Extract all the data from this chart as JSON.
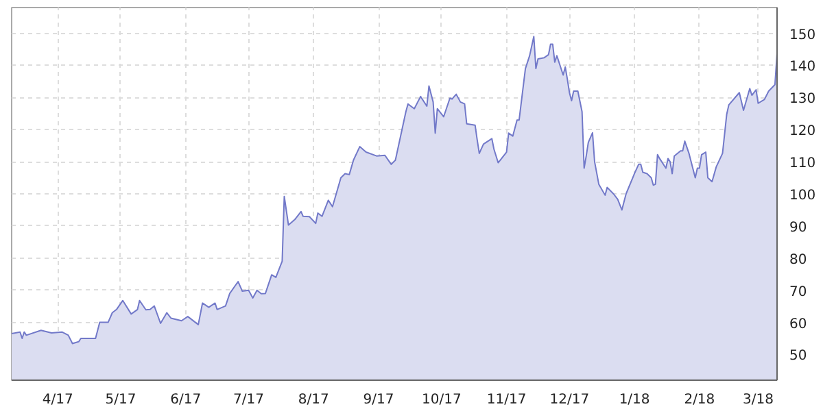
{
  "chart_data": {
    "type": "area",
    "x": [
      "2017-03-10",
      "2017-03-14",
      "2017-03-15",
      "2017-03-16",
      "2017-03-17",
      "2017-03-24",
      "2017-03-29",
      "2017-04-03",
      "2017-04-06",
      "2017-04-08",
      "2017-04-11",
      "2017-04-12",
      "2017-04-19",
      "2017-04-21",
      "2017-04-25",
      "2017-04-27",
      "2017-04-29",
      "2017-05-02",
      "2017-05-06",
      "2017-05-09",
      "2017-05-10",
      "2017-05-13",
      "2017-05-15",
      "2017-05-17",
      "2017-05-20",
      "2017-05-23",
      "2017-05-25",
      "2017-05-30",
      "2017-06-02",
      "2017-06-07",
      "2017-06-09",
      "2017-06-12",
      "2017-06-15",
      "2017-06-16",
      "2017-06-20",
      "2017-06-22",
      "2017-06-26",
      "2017-06-28",
      "2017-07-01",
      "2017-07-03",
      "2017-07-05",
      "2017-07-07",
      "2017-07-09",
      "2017-07-12",
      "2017-07-14",
      "2017-07-17",
      "2017-07-18",
      "2017-07-20",
      "2017-07-23",
      "2017-07-26",
      "2017-07-27",
      "2017-07-30",
      "2017-08-02",
      "2017-08-03",
      "2017-08-05",
      "2017-08-08",
      "2017-08-10",
      "2017-08-14",
      "2017-08-16",
      "2017-08-18",
      "2017-08-20",
      "2017-08-23",
      "2017-08-26",
      "2017-08-31",
      "2017-09-04",
      "2017-09-07",
      "2017-09-09",
      "2017-09-14",
      "2017-09-15",
      "2017-09-18",
      "2017-09-21",
      "2017-09-24",
      "2017-09-25",
      "2017-09-27",
      "2017-09-28",
      "2017-09-29",
      "2017-10-02",
      "2017-10-05",
      "2017-10-06",
      "2017-10-08",
      "2017-10-10",
      "2017-10-12",
      "2017-10-13",
      "2017-10-17",
      "2017-10-18",
      "2017-10-19",
      "2017-10-21",
      "2017-10-25",
      "2017-10-26",
      "2017-10-28",
      "2017-11-01",
      "2017-11-02",
      "2017-11-04",
      "2017-11-06",
      "2017-11-07",
      "2017-11-10",
      "2017-11-12",
      "2017-11-14",
      "2017-11-15",
      "2017-11-16",
      "2017-11-19",
      "2017-11-21",
      "2017-11-22",
      "2017-11-23",
      "2017-11-24",
      "2017-11-25",
      "2017-11-28",
      "2017-11-29",
      "2017-11-30",
      "2017-12-01",
      "2017-12-02",
      "2017-12-03",
      "2017-12-05",
      "2017-12-07",
      "2017-12-08",
      "2017-12-09",
      "2017-12-10",
      "2017-12-12",
      "2017-12-13",
      "2017-12-15",
      "2017-12-18",
      "2017-12-19",
      "2017-12-22",
      "2017-12-24",
      "2017-12-26",
      "2017-12-28",
      "2018-01-01",
      "2018-01-03",
      "2018-01-04",
      "2018-01-05",
      "2018-01-07",
      "2018-01-09",
      "2018-01-10",
      "2018-01-11",
      "2018-01-12",
      "2018-01-13",
      "2018-01-16",
      "2018-01-17",
      "2018-01-18",
      "2018-01-19",
      "2018-01-20",
      "2018-01-23",
      "2018-01-24",
      "2018-01-25",
      "2018-01-27",
      "2018-01-30",
      "2018-01-31",
      "2018-02-01",
      "2018-02-02",
      "2018-02-04",
      "2018-02-05",
      "2018-02-07",
      "2018-02-09",
      "2018-02-12",
      "2018-02-14",
      "2018-02-15",
      "2018-02-20",
      "2018-02-22",
      "2018-02-25",
      "2018-02-26",
      "2018-02-28",
      "2018-03-01",
      "2018-03-04",
      "2018-03-06",
      "2018-03-09",
      "2018-03-10"
    ],
    "series": [
      {
        "color": "#7279c9",
        "values": [
          56.5,
          57,
          55,
          57,
          56,
          57.5,
          56.7,
          57,
          56,
          53.4,
          54,
          55,
          55,
          60,
          60,
          63,
          64,
          66.8,
          62.6,
          64,
          66.8,
          63.9,
          64,
          65.1,
          59.7,
          63,
          61.3,
          60.5,
          61.8,
          59.3,
          66,
          64.7,
          66,
          64,
          65.1,
          69,
          72.7,
          69.7,
          70,
          67.6,
          70,
          68.9,
          69,
          74.8,
          74,
          79,
          99.2,
          90.3,
          92,
          94.5,
          93,
          92.9,
          90.8,
          94,
          93,
          98,
          96,
          105,
          106.3,
          106,
          110.5,
          114.7,
          113,
          111.8,
          112,
          109.2,
          110.5,
          125.6,
          128,
          126.5,
          130.3,
          127.3,
          133.6,
          128.6,
          118.9,
          126.5,
          124,
          129.8,
          129.5,
          131,
          128.6,
          128,
          121.8,
          121.4,
          116.8,
          112.6,
          115.5,
          117.2,
          113.9,
          109.7,
          113,
          118.9,
          118,
          123,
          123,
          139,
          143,
          149,
          139,
          142,
          142.4,
          143.3,
          146.6,
          146.6,
          141,
          143,
          137,
          139.5,
          135.7,
          131.5,
          129,
          132,
          132,
          125.6,
          108,
          111.8,
          116,
          119,
          110,
          103,
          99.6,
          102,
          100,
          98.3,
          95,
          100,
          106.3,
          109.2,
          109.2,
          106.7,
          106.3,
          105,
          102.7,
          103,
          112.2,
          111,
          108,
          111,
          110,
          106.3,
          111.8,
          113.4,
          113.4,
          116.4,
          112.6,
          105,
          108,
          108,
          112.2,
          113,
          105,
          103.8,
          108.4,
          112.6,
          124.8,
          127.7,
          131.5,
          126,
          132.8,
          130.7,
          132.4,
          128.2,
          129.4,
          132,
          134,
          143.7
        ]
      }
    ],
    "xlim": [
      "2017-03-10",
      "2018-03-10"
    ],
    "xticks": [
      {
        "value": "2017-04-01",
        "label": "4/17"
      },
      {
        "value": "2017-05-01",
        "label": "5/17"
      },
      {
        "value": "2017-06-01",
        "label": "6/17"
      },
      {
        "value": "2017-07-01",
        "label": "7/17"
      },
      {
        "value": "2017-08-01",
        "label": "8/17"
      },
      {
        "value": "2017-09-01",
        "label": "9/17"
      },
      {
        "value": "2017-10-01",
        "label": "10/17"
      },
      {
        "value": "2017-11-01",
        "label": "11/17"
      },
      {
        "value": "2017-12-01",
        "label": "12/17"
      },
      {
        "value": "2018-01-01",
        "label": "1/18"
      },
      {
        "value": "2018-02-01",
        "label": "2/18"
      },
      {
        "value": "2018-03-01",
        "label": "3/18"
      }
    ],
    "ylim": [
      42,
      158
    ],
    "yticks": [
      50,
      60,
      70,
      80,
      90,
      100,
      110,
      120,
      130,
      140,
      150
    ],
    "grid": true,
    "line_style": "solid"
  }
}
